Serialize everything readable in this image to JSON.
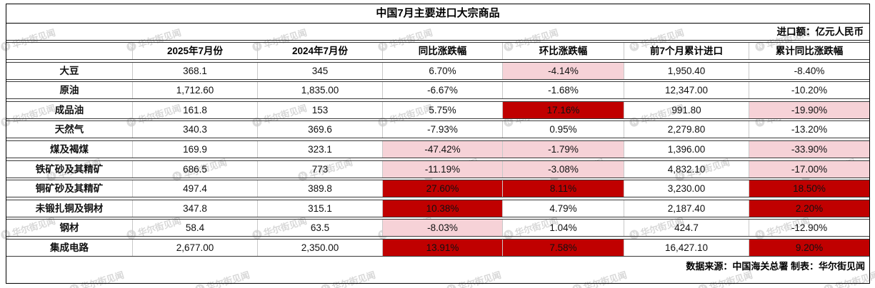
{
  "chart_data": {
    "type": "table",
    "title": "中国7月主要进口大宗商品",
    "unit_note": "进口额：亿元人民币",
    "source_note": "数据来源：中国海关总署 制表：华尔街见闻",
    "columns": [
      "",
      "2025年7月份",
      "2024年7月份",
      "同比涨跌幅",
      "环比涨跌幅",
      "前7个月累计进口",
      "累计同比涨跌幅"
    ],
    "rows": [
      {
        "name": "大豆",
        "values": [
          "368.1",
          "345",
          "6.70%",
          "-4.14%",
          "1,950.40",
          "-8.40%"
        ],
        "highlight": [
          "",
          "",
          "",
          "pink",
          "",
          ""
        ]
      },
      {
        "name": "原油",
        "values": [
          "1,712.60",
          "1,835.00",
          "-6.67%",
          "-1.68%",
          "12,347.00",
          "-10.20%"
        ],
        "highlight": [
          "",
          "",
          "",
          "",
          "",
          ""
        ]
      },
      {
        "name": "成品油",
        "values": [
          "161.8",
          "153",
          "5.75%",
          "17.16%",
          "991.80",
          "-19.90%"
        ],
        "highlight": [
          "",
          "",
          "",
          "red",
          "",
          "pink"
        ]
      },
      {
        "name": "天然气",
        "values": [
          "340.3",
          "369.6",
          "-7.93%",
          "0.95%",
          "2,279.80",
          "-13.20%"
        ],
        "highlight": [
          "",
          "",
          "",
          "",
          "",
          ""
        ]
      },
      {
        "name": "煤及褐煤",
        "values": [
          "169.9",
          "323.1",
          "-47.42%",
          "-1.79%",
          "1,396.00",
          "-33.90%"
        ],
        "highlight": [
          "",
          "",
          "pink",
          "pink",
          "",
          "pink"
        ]
      },
      {
        "name": "铁矿砂及其精矿",
        "values": [
          "686.5",
          "773",
          "-11.19%",
          "-3.08%",
          "4,832.10",
          "-17.00%"
        ],
        "highlight": [
          "",
          "",
          "pink",
          "pink",
          "",
          "pink"
        ]
      },
      {
        "name": "铜矿砂及其精矿",
        "values": [
          "497.4",
          "389.8",
          "27.60%",
          "8.11%",
          "3,230.00",
          "18.50%"
        ],
        "highlight": [
          "",
          "",
          "red",
          "red",
          "",
          "red"
        ]
      },
      {
        "name": "未锻扎铜及铜材",
        "values": [
          "347.8",
          "315.1",
          "10.38%",
          "4.79%",
          "2,187.40",
          "2.20%"
        ],
        "highlight": [
          "",
          "",
          "red",
          "",
          "",
          "red"
        ]
      },
      {
        "name": "钢材",
        "values": [
          "58.4",
          "63.5",
          "-8.03%",
          "1.04%",
          "424.7",
          "-12.90%"
        ],
        "highlight": [
          "",
          "",
          "pink",
          "",
          "",
          ""
        ]
      },
      {
        "name": "集成电路",
        "values": [
          "2,677.00",
          "2,350.00",
          "13.91%",
          "7.58%",
          "16,427.10",
          "9.20%"
        ],
        "highlight": [
          "",
          "",
          "red",
          "red",
          "",
          "red"
        ]
      }
    ]
  },
  "watermark": {
    "text": "华尔街见闻",
    "icon": "wscn-logo-icon"
  },
  "colors": {
    "strong_red": "#c00000",
    "light_pink": "#f6d2d7",
    "border_dark": "#3a3a3a",
    "grid_light": "#c8c8c8"
  }
}
